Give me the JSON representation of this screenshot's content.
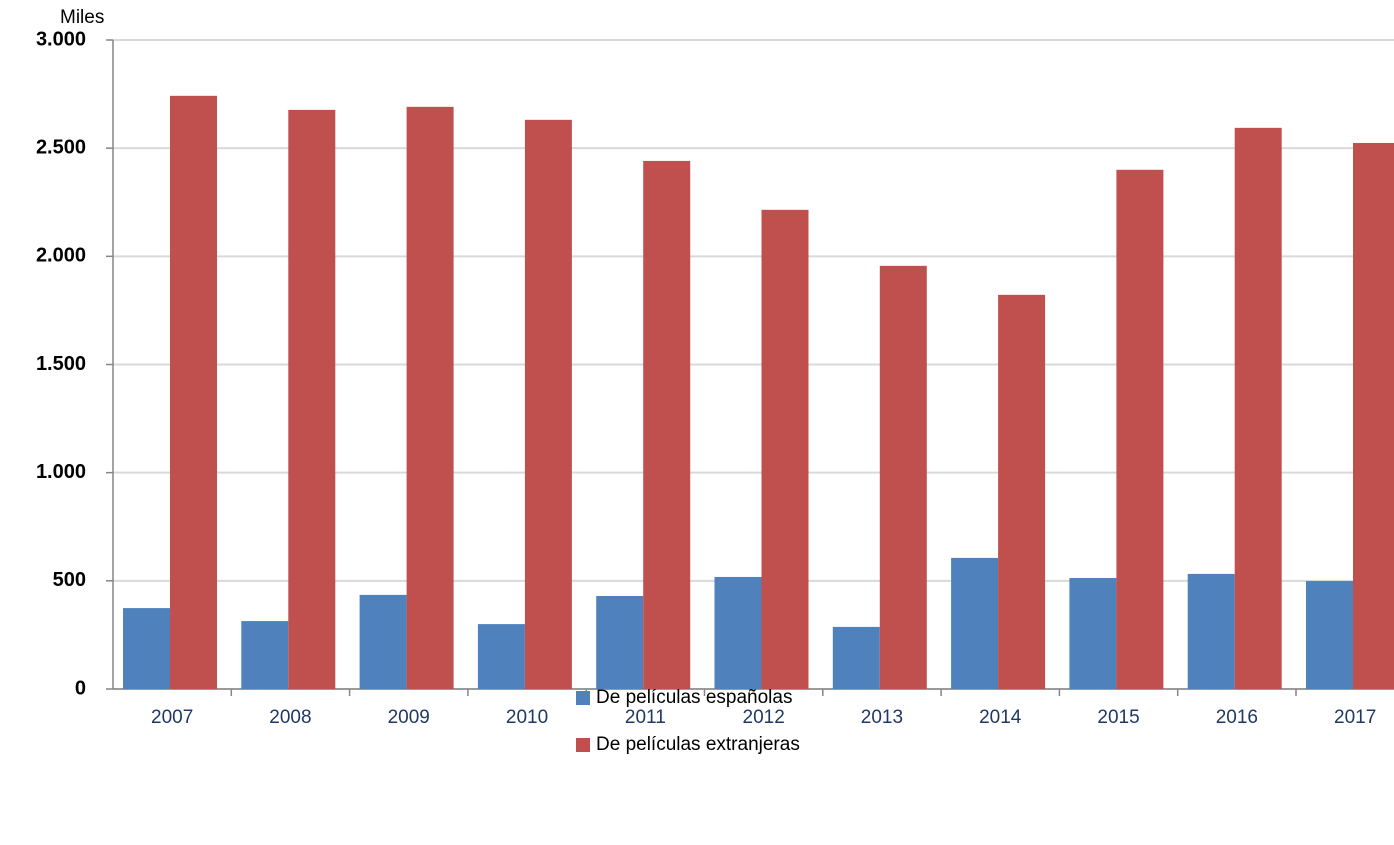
{
  "chart_data": {
    "type": "bar",
    "ylabel": "Miles",
    "categories": [
      "2007",
      "2008",
      "2009",
      "2010",
      "2011",
      "2012",
      "2013",
      "2014",
      "2015",
      "2016",
      "2017"
    ],
    "series": [
      {
        "name": "De películas españolas",
        "color": "#4f81bd",
        "values": [
          374,
          314,
          435,
          300,
          430,
          518,
          287,
          606,
          513,
          532,
          499
        ]
      },
      {
        "name": "De películas extranjeras",
        "color": "#c0504d",
        "values": [
          2742,
          2677,
          2691,
          2631,
          2441,
          2215,
          1956,
          1822,
          2400,
          2594,
          2524
        ]
      }
    ],
    "ylim": [
      0,
      3000
    ],
    "yticks": [
      0,
      500,
      {
        "value": 1000,
        "label": "1.000"
      },
      {
        "value": 1500,
        "label": "1.500"
      },
      {
        "value": 2000,
        "label": "2.000"
      },
      {
        "value": 2500,
        "label": "2.500"
      },
      {
        "value": 3000,
        "label": "3.000"
      }
    ],
    "grid": true,
    "legend": "bottom"
  }
}
